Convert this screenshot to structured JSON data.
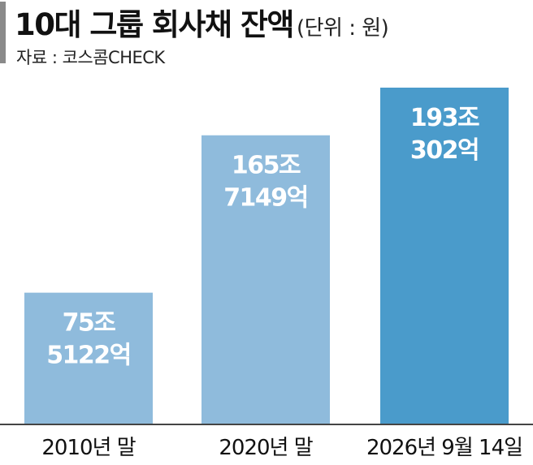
{
  "header": {
    "title": "10대 그룹 회사채 잔액",
    "unit": "(단위 : 원)",
    "source": "자료 : 코스콤CHECK"
  },
  "colors": {
    "bar_light": "#8fbbdc",
    "bar_highlight": "#4a9bcb",
    "baseline": "#444444"
  },
  "chart_data": {
    "type": "bar",
    "categories": [
      "2010년 말",
      "2020년 말",
      "2026년 9월 14일"
    ],
    "values": [
      75.5122,
      165.7149,
      193.0302
    ],
    "value_labels": [
      [
        "75조",
        "5122억"
      ],
      [
        "165조",
        "7149억"
      ],
      [
        "193조",
        "302억"
      ]
    ],
    "highlight_index": 2,
    "ylim": [
      0,
      200
    ],
    "grid": false
  }
}
